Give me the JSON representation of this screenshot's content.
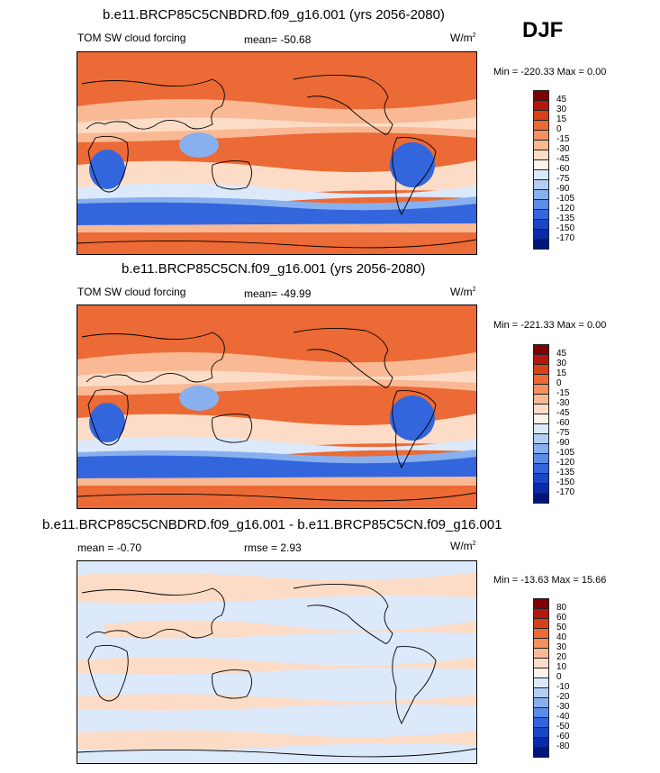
{
  "season": "DJF",
  "panels": [
    {
      "title": "b.e11.BRCP85C5CNBDRD.f09_g16.001 (yrs 2056-2080)",
      "variable": "TOM SW cloud forcing",
      "mean_text": "mean= -50.68",
      "units_base": "W/m",
      "units_exp": "2",
      "minmax_text": "Min = -220.33 Max =   0.00",
      "colorbar_labels": [
        "45",
        "30",
        "15",
        "0",
        "-15",
        "-30",
        "-45",
        "-60",
        "-75",
        "-90",
        "-105",
        "-120",
        "-135",
        "-150",
        "-170"
      ],
      "colorbar_colors": [
        "#7f0000",
        "#b2180e",
        "#d8401a",
        "#ec6a35",
        "#f4915e",
        "#f9b994",
        "#fcdcc6",
        "#fdf2ea",
        "#dce9fb",
        "#b3cdf3",
        "#88b0ee",
        "#5a8ce8",
        "#3366dd",
        "#1a46c5",
        "#0a2aa8",
        "#02157a"
      ]
    },
    {
      "title": "b.e11.BRCP85C5CN.f09_g16.001 (yrs 2056-2080)",
      "variable": "TOM SW cloud forcing",
      "mean_text": "mean= -49.99",
      "units_base": "W/m",
      "units_exp": "2",
      "minmax_text": "Min = -221.33 Max =   0.00",
      "colorbar_labels": [
        "45",
        "30",
        "15",
        "0",
        "-15",
        "-30",
        "-45",
        "-60",
        "-75",
        "-90",
        "-105",
        "-120",
        "-135",
        "-150",
        "-170"
      ],
      "colorbar_colors": [
        "#7f0000",
        "#b2180e",
        "#d8401a",
        "#ec6a35",
        "#f4915e",
        "#f9b994",
        "#fcdcc6",
        "#fdf2ea",
        "#dce9fb",
        "#b3cdf3",
        "#88b0ee",
        "#5a8ce8",
        "#3366dd",
        "#1a46c5",
        "#0a2aa8",
        "#02157a"
      ]
    },
    {
      "title": "b.e11.BRCP85C5CNBDRD.f09_g16.001 - b.e11.BRCP85C5CN.f09_g16.001",
      "mean_text": "mean =  -0.70",
      "rmse_text": "rmse =   2.93",
      "units_base": "W/m",
      "units_exp": "2",
      "minmax_text": "Min = -13.63 Max =  15.66",
      "colorbar_labels": [
        "80",
        "60",
        "50",
        "40",
        "30",
        "20",
        "10",
        "0",
        "-10",
        "-20",
        "-30",
        "-40",
        "-50",
        "-60",
        "-80"
      ],
      "colorbar_colors": [
        "#7f0000",
        "#b2180e",
        "#d8401a",
        "#ec6a35",
        "#f4915e",
        "#f9b994",
        "#fcdcc6",
        "#fdf2ea",
        "#dce9fb",
        "#b3cdf3",
        "#88b0ee",
        "#5a8ce8",
        "#3366dd",
        "#1a46c5",
        "#0a2aa8",
        "#02157a"
      ]
    }
  ]
}
